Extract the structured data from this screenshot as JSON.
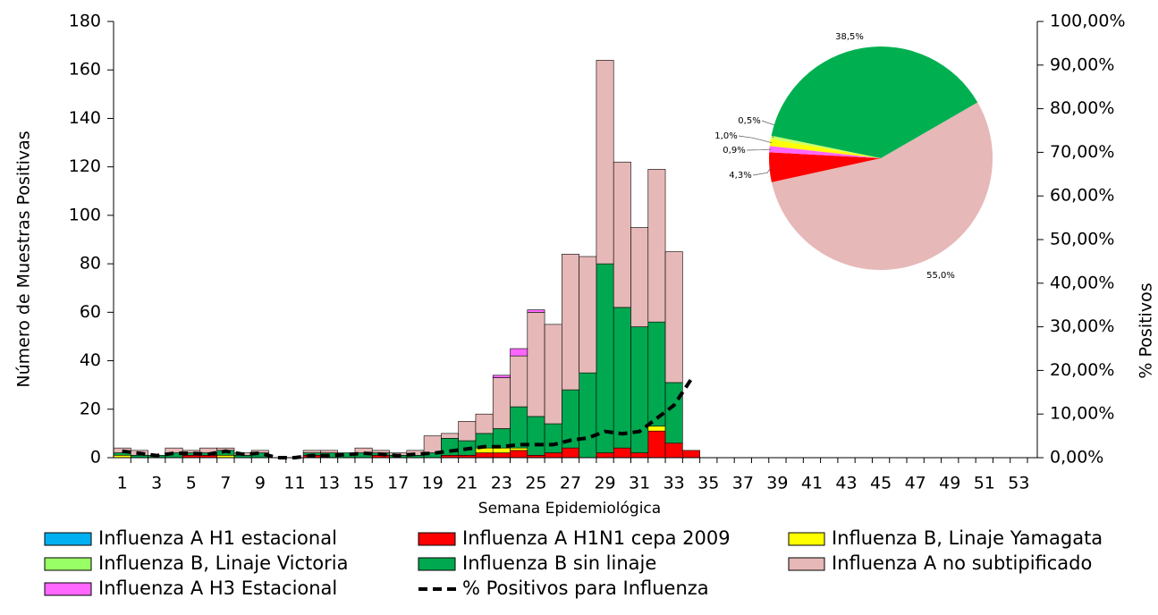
{
  "chart_data": [
    {
      "type": "bar",
      "stacked": true,
      "y_label": "Número de Muestras Positivas",
      "y2_label": "% Positivos",
      "x_label": "Semana Epidemiológica",
      "categories": [
        1,
        null,
        3,
        null,
        5,
        null,
        7,
        null,
        9,
        null,
        11,
        null,
        13,
        null,
        15,
        null,
        17,
        null,
        19,
        null,
        21,
        null,
        23,
        null,
        25,
        null,
        27,
        null,
        29,
        null,
        31,
        null,
        33,
        null,
        35,
        null,
        37,
        null,
        39,
        null,
        41,
        null,
        43,
        null,
        45,
        null,
        47,
        null,
        49,
        null,
        51,
        null,
        53
      ],
      "ylim": [
        0,
        180
      ],
      "yticks": [
        0,
        20,
        40,
        60,
        80,
        100,
        120,
        140,
        160,
        180
      ],
      "y2lim": [
        0,
        100
      ],
      "y2ticks": [
        {
          "value": 0,
          "label": "0,00%"
        },
        {
          "value": 10,
          "label": "10,00%"
        },
        {
          "value": 20,
          "label": "20,00%"
        },
        {
          "value": 30,
          "label": "30,00%"
        },
        {
          "value": 40,
          "label": "40,00%"
        },
        {
          "value": 50,
          "label": "50,00%"
        },
        {
          "value": 60,
          "label": "60,00%"
        },
        {
          "value": 70,
          "label": "70,00%"
        },
        {
          "value": 80,
          "label": "80,00%"
        },
        {
          "value": 90,
          "label": "90,00%"
        },
        {
          "value": 100,
          "label": "100,00%"
        }
      ],
      "series": [
        {
          "name": "Influenza A H1 estacional",
          "color": "#00b0f0",
          "values": [
            0,
            0,
            0,
            0,
            0,
            0,
            0,
            0,
            0,
            0,
            0,
            0,
            0,
            0,
            0,
            0,
            0,
            0,
            0,
            0,
            0,
            0,
            0,
            0,
            0,
            0,
            0,
            0,
            0,
            0,
            0,
            0,
            0,
            0,
            null,
            null,
            null,
            null,
            null,
            null,
            null,
            null,
            null,
            null,
            null,
            null,
            null,
            null,
            null,
            null,
            null,
            null,
            null
          ]
        },
        {
          "name": "Influenza A H1N1 cepa 2009",
          "color": "#ff0000",
          "values": [
            0,
            0,
            0,
            0,
            1,
            1,
            0,
            0,
            0,
            0,
            0,
            1,
            0,
            0,
            0,
            1,
            0,
            0,
            0,
            1,
            1,
            2,
            2,
            3,
            1,
            2,
            4,
            0,
            2,
            4,
            2,
            11,
            6,
            3,
            null,
            null,
            null,
            null,
            null,
            null,
            null,
            null,
            null,
            null,
            null,
            null,
            null,
            null,
            null,
            null,
            null,
            null,
            null
          ]
        },
        {
          "name": "Influenza B, Linaje Yamagata",
          "color": "#ffff00",
          "values": [
            1,
            0,
            0,
            0,
            0,
            0,
            1,
            0,
            0,
            0,
            0,
            0,
            0,
            0,
            0,
            0,
            0,
            0,
            0,
            0,
            0,
            2,
            2,
            1,
            0,
            0,
            0,
            0,
            0,
            0,
            0,
            2,
            0,
            0,
            null,
            null,
            null,
            null,
            null,
            null,
            null,
            null,
            null,
            null,
            null,
            null,
            null,
            null,
            null,
            null,
            null,
            null,
            null
          ]
        },
        {
          "name": "Influenza B, Linaje Victoria",
          "color": "#99ff66",
          "values": [
            0,
            0,
            0,
            0,
            0,
            0,
            0,
            0,
            0,
            0,
            0,
            0,
            0,
            0,
            0,
            0,
            0,
            0,
            0,
            0,
            0,
            0,
            0,
            0,
            0,
            0,
            0,
            0,
            0,
            0,
            0,
            0,
            0,
            0,
            null,
            null,
            null,
            null,
            null,
            null,
            null,
            null,
            null,
            null,
            null,
            null,
            null,
            null,
            null,
            null,
            null,
            null,
            null
          ]
        },
        {
          "name": "Influenza B sin linaje",
          "color": "#00a84f",
          "values": [
            1,
            1,
            1,
            2,
            1,
            1,
            2,
            1,
            2,
            0,
            0,
            1,
            2,
            2,
            2,
            1,
            1,
            1,
            2,
            7,
            6,
            6,
            8,
            17,
            16,
            12,
            24,
            35,
            78,
            58,
            52,
            43,
            25,
            0,
            null,
            null,
            null,
            null,
            null,
            null,
            null,
            null,
            null,
            null,
            null,
            null,
            null,
            null,
            null,
            null,
            null,
            null,
            null
          ]
        },
        {
          "name": "Influenza A no subtipificado",
          "color": "#e6b8b7",
          "values": [
            2,
            2,
            0,
            2,
            1,
            2,
            1,
            1,
            1,
            0,
            0,
            1,
            1,
            0,
            2,
            1,
            1,
            2,
            7,
            2,
            8,
            8,
            21,
            21,
            43,
            41,
            56,
            48,
            84,
            60,
            41,
            63,
            54,
            0,
            null,
            null,
            null,
            null,
            null,
            null,
            null,
            null,
            null,
            null,
            null,
            null,
            null,
            null,
            null,
            null,
            null,
            null,
            null
          ]
        },
        {
          "name": "Influenza A H3 Estacional",
          "color": "#ff66ff",
          "values": [
            0,
            0,
            0,
            0,
            0,
            0,
            0,
            0,
            0,
            0,
            0,
            0,
            0,
            0,
            0,
            0,
            0,
            0,
            0,
            0,
            0,
            0,
            1,
            3,
            1,
            0,
            0,
            0,
            0,
            0,
            0,
            0,
            0,
            0,
            null,
            null,
            null,
            null,
            null,
            null,
            null,
            null,
            null,
            null,
            null,
            null,
            null,
            null,
            null,
            null,
            null,
            null,
            null
          ]
        },
        {
          "name": "% Positivos para Influenza",
          "type": "line",
          "axis": "y2",
          "color": "#000000",
          "values": [
            1.5,
            1,
            0.5,
            1,
            1,
            0.8,
            1.5,
            0.8,
            1,
            0,
            0,
            0.5,
            0.5,
            0.7,
            1,
            0.8,
            0.5,
            0.8,
            1,
            1.5,
            2,
            2.5,
            2.5,
            3,
            3,
            3,
            4,
            4.5,
            6,
            5.5,
            6,
            9,
            12,
            18,
            null,
            null,
            null,
            null,
            null,
            null,
            null,
            null,
            null,
            null,
            null,
            null,
            null,
            null,
            null,
            null,
            null,
            null,
            null
          ]
        }
      ]
    },
    {
      "type": "pie",
      "values": [
        55.0,
        4.3,
        0.9,
        1.0,
        0.5,
        38.5
      ],
      "value_labels": [
        "55,0%",
        "4,3%",
        "0,9%",
        "1,0%",
        "0,5%",
        "38,5%"
      ],
      "colors": [
        "#e6b8b7",
        "#ff0000",
        "#ff66ff",
        "#ffff00",
        "#ccff66",
        "#00b050"
      ]
    }
  ]
}
